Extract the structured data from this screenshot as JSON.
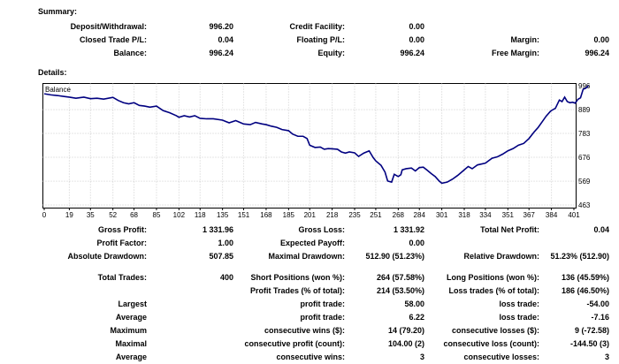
{
  "summary": {
    "title": "Summary:",
    "rows": [
      [
        {
          "label": "Deposit/Withdrawal:",
          "value": "996.20"
        },
        {
          "label": "Credit Facility:",
          "value": "0.00"
        },
        {
          "label": "",
          "value": ""
        }
      ],
      [
        {
          "label": "Closed Trade P/L:",
          "value": "0.04"
        },
        {
          "label": "Floating P/L:",
          "value": "0.00"
        },
        {
          "label": "Margin:",
          "value": "0.00"
        }
      ],
      [
        {
          "label": "Balance:",
          "value": "996.24"
        },
        {
          "label": "Equity:",
          "value": "996.24"
        },
        {
          "label": "Free Margin:",
          "value": "996.24"
        }
      ]
    ]
  },
  "details": {
    "title": "Details:"
  },
  "chart_data": {
    "type": "line",
    "title": "",
    "legend_label": "Balance",
    "color": "#000080",
    "grid": true,
    "xlim": [
      0,
      401
    ],
    "ylim": [
      463,
      996
    ],
    "x_ticks": [
      "0",
      "19",
      "35",
      "52",
      "68",
      "85",
      "102",
      "118",
      "135",
      "151",
      "168",
      "185",
      "201",
      "218",
      "235",
      "251",
      "268",
      "284",
      "301",
      "318",
      "334",
      "351",
      "367",
      "384",
      "401"
    ],
    "y_ticks": [
      "996",
      "889",
      "783",
      "676",
      "569",
      "463"
    ],
    "series": [
      {
        "values": [
          [
            0,
            960
          ],
          [
            5,
            955
          ],
          [
            10,
            952
          ],
          [
            15,
            948
          ],
          [
            19,
            945
          ],
          [
            24,
            940
          ],
          [
            30,
            945
          ],
          [
            35,
            938
          ],
          [
            40,
            940
          ],
          [
            45,
            936
          ],
          [
            52,
            944
          ],
          [
            56,
            930
          ],
          [
            60,
            920
          ],
          [
            64,
            915
          ],
          [
            68,
            920
          ],
          [
            72,
            908
          ],
          [
            76,
            905
          ],
          [
            80,
            900
          ],
          [
            85,
            905
          ],
          [
            90,
            885
          ],
          [
            95,
            875
          ],
          [
            100,
            862
          ],
          [
            102,
            855
          ],
          [
            106,
            862
          ],
          [
            110,
            856
          ],
          [
            114,
            862
          ],
          [
            118,
            850
          ],
          [
            123,
            848
          ],
          [
            128,
            848
          ],
          [
            135,
            842
          ],
          [
            140,
            830
          ],
          [
            145,
            840
          ],
          [
            151,
            825
          ],
          [
            156,
            822
          ],
          [
            160,
            832
          ],
          [
            165,
            825
          ],
          [
            168,
            822
          ],
          [
            172,
            815
          ],
          [
            176,
            810
          ],
          [
            180,
            800
          ],
          [
            185,
            795
          ],
          [
            188,
            780
          ],
          [
            192,
            770
          ],
          [
            196,
            770
          ],
          [
            199,
            760
          ],
          [
            201,
            730
          ],
          [
            205,
            720
          ],
          [
            209,
            722
          ],
          [
            212,
            712
          ],
          [
            215,
            715
          ],
          [
            218,
            714
          ],
          [
            222,
            712
          ],
          [
            225,
            700
          ],
          [
            228,
            695
          ],
          [
            231,
            700
          ],
          [
            235,
            696
          ],
          [
            238,
            680
          ],
          [
            242,
            695
          ],
          [
            246,
            705
          ],
          [
            249,
            675
          ],
          [
            251,
            660
          ],
          [
            255,
            640
          ],
          [
            258,
            610
          ],
          [
            260,
            570
          ],
          [
            263,
            565
          ],
          [
            265,
            600
          ],
          [
            268,
            590
          ],
          [
            270,
            598
          ],
          [
            271,
            620
          ],
          [
            274,
            625
          ],
          [
            278,
            628
          ],
          [
            281,
            615
          ],
          [
            284,
            630
          ],
          [
            287,
            632
          ],
          [
            290,
            618
          ],
          [
            293,
            603
          ],
          [
            296,
            590
          ],
          [
            299,
            570
          ],
          [
            301,
            560
          ],
          [
            305,
            565
          ],
          [
            309,
            578
          ],
          [
            313,
            595
          ],
          [
            318,
            620
          ],
          [
            321,
            635
          ],
          [
            324,
            625
          ],
          [
            328,
            642
          ],
          [
            334,
            650
          ],
          [
            339,
            672
          ],
          [
            343,
            678
          ],
          [
            347,
            690
          ],
          [
            351,
            705
          ],
          [
            355,
            715
          ],
          [
            359,
            730
          ],
          [
            363,
            738
          ],
          [
            367,
            760
          ],
          [
            371,
            790
          ],
          [
            374,
            810
          ],
          [
            377,
            835
          ],
          [
            380,
            860
          ],
          [
            383,
            880
          ],
          [
            384,
            885
          ],
          [
            387,
            895
          ],
          [
            390,
            932
          ],
          [
            392,
            925
          ],
          [
            394,
            945
          ],
          [
            396,
            925
          ],
          [
            398,
            920
          ],
          [
            400,
            922
          ],
          [
            402,
            918
          ],
          [
            404,
            935
          ],
          [
            406,
            942
          ],
          [
            408,
            980
          ],
          [
            410,
            985
          ],
          [
            412,
            996
          ]
        ]
      }
    ]
  },
  "stats": {
    "gross_profit": {
      "label": "Gross Profit:",
      "value": "1 331.96"
    },
    "gross_loss": {
      "label": "Gross Loss:",
      "value": "1 331.92"
    },
    "total_net_profit": {
      "label": "Total Net Profit:",
      "value": "0.04"
    },
    "profit_factor": {
      "label": "Profit Factor:",
      "value": "1.00"
    },
    "expected_payoff": {
      "label": "Expected Payoff:",
      "value": "0.00"
    },
    "absolute_drawdown": {
      "label": "Absolute Drawdown:",
      "value": "507.85"
    },
    "maximal_drawdown": {
      "label": "Maximal Drawdown:",
      "value": "512.90 (51.23%)"
    },
    "relative_drawdown": {
      "label": "Relative Drawdown:",
      "value": "51.23% (512.90)"
    },
    "total_trades": {
      "label": "Total Trades:",
      "value": "400"
    },
    "short_positions": {
      "label": "Short Positions (won %):",
      "value": "264 (57.58%)"
    },
    "long_positions": {
      "label": "Long Positions (won %):",
      "value": "136 (45.59%)"
    },
    "profit_trades": {
      "label": "Profit Trades (% of total):",
      "value": "214 (53.50%)"
    },
    "loss_trades": {
      "label": "Loss trades (% of total):",
      "value": "186 (46.50%)"
    },
    "largest": {
      "label": "Largest",
      "profit_label": "profit trade:",
      "profit": "58.00",
      "loss_label": "loss trade:",
      "loss": "-54.00"
    },
    "average": {
      "label": "Average",
      "profit_label": "profit trade:",
      "profit": "6.22",
      "loss_label": "loss trade:",
      "loss": "-7.16"
    },
    "maximum": {
      "label": "Maximum",
      "wins_label": "consecutive wins ($):",
      "wins": "14 (79.20)",
      "losses_label": "consecutive losses ($):",
      "losses": "9 (-72.58)"
    },
    "maximal": {
      "label": "Maximal",
      "profit_label": "consecutive profit (count):",
      "profit": "104.00 (2)",
      "loss_label": "consecutive loss (count):",
      "loss": "-144.50 (3)"
    },
    "average_consecutive": {
      "label": "Average",
      "wins_label": "consecutive wins:",
      "wins": "3",
      "losses_label": "consecutive losses:",
      "losses": "3"
    }
  }
}
